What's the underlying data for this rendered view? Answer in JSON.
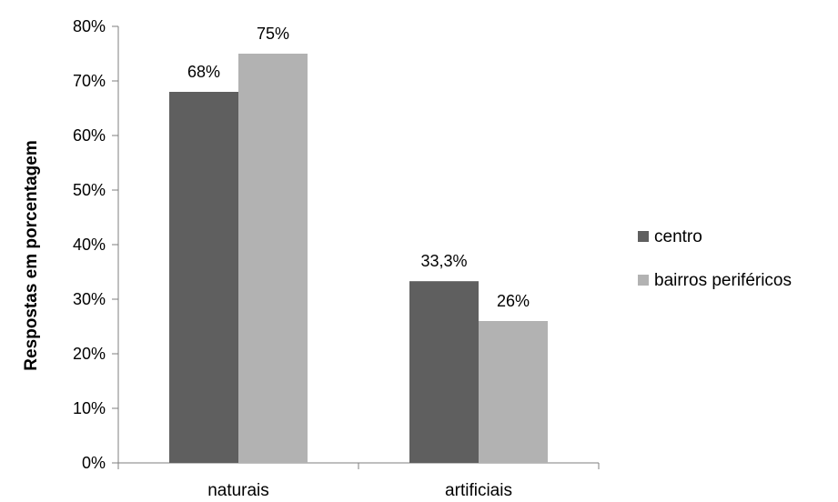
{
  "chart_data": {
    "type": "bar",
    "categories": [
      "naturais",
      "artificiais"
    ],
    "series": [
      {
        "name": "centro",
        "values": [
          68,
          33.3
        ],
        "labels": [
          "68%",
          "33,3%"
        ],
        "color": "#5f5f5f"
      },
      {
        "name": "bairros periféricos",
        "values": [
          75,
          26
        ],
        "labels": [
          "75%",
          "26%"
        ],
        "color": "#b2b2b2"
      }
    ],
    "ylabel": "Respostas em porcentagem",
    "xlabel": "",
    "ylim": [
      0,
      80
    ],
    "yticks": [
      "0%",
      "10%",
      "20%",
      "30%",
      "40%",
      "50%",
      "60%",
      "70%",
      "80%"
    ],
    "grid": false,
    "legend_position": "right"
  }
}
